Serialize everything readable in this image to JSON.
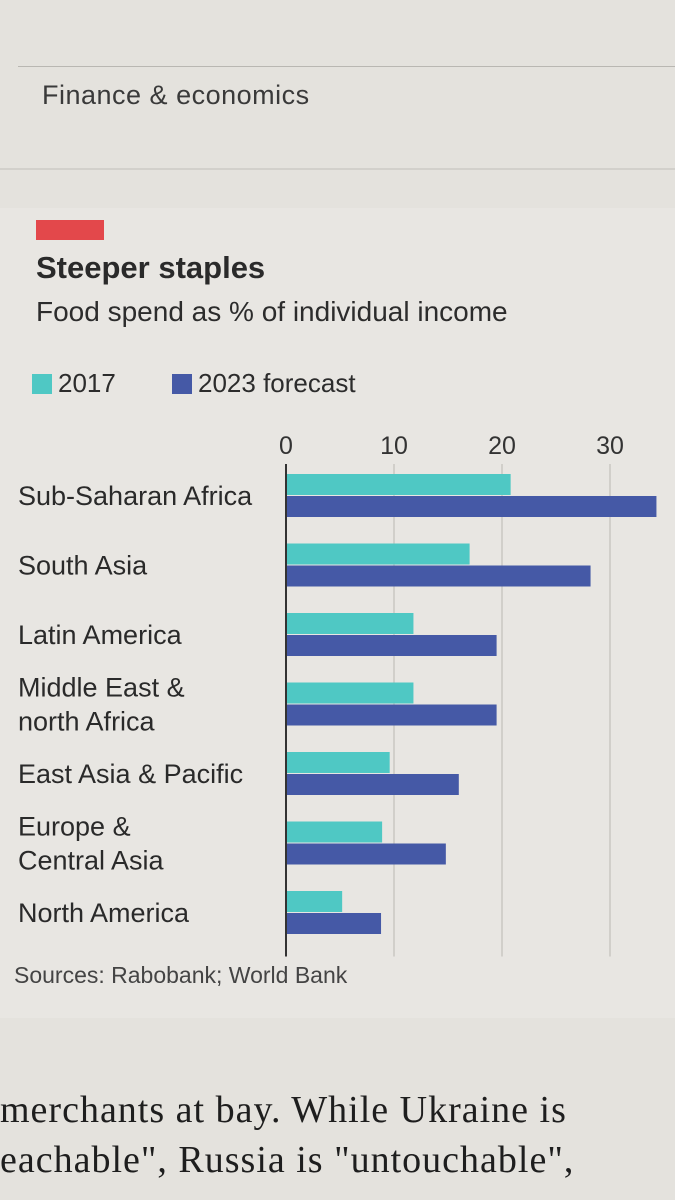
{
  "page": {
    "section": "Finance & economics",
    "source": "Sources: Rabobank; World Bank",
    "body_lines": [
      "merchants at bay. While Ukraine is",
      "eachable\", Russia is \"untouchable\","
    ]
  },
  "colors": {
    "series_2017": "#4fc8c4",
    "series_2023": "#4559a6",
    "accent": "#e3484b"
  },
  "chart_data": {
    "type": "bar",
    "orientation": "horizontal",
    "title": "Steeper staples",
    "subtitle": "Food spend as % of individual income",
    "categories": [
      "Sub-Saharan Africa",
      "South Asia",
      "Latin America",
      "Middle East & north Africa",
      "East Asia & Pacific",
      "Europe & Central Asia",
      "North America"
    ],
    "category_lines": [
      [
        "Sub-Saharan Africa"
      ],
      [
        "South Asia"
      ],
      [
        "Latin America"
      ],
      [
        "Middle East &",
        "north Africa"
      ],
      [
        "East Asia & Pacific"
      ],
      [
        "Europe &",
        "Central Asia"
      ],
      [
        "North America"
      ]
    ],
    "series": [
      {
        "name": "2017",
        "values": [
          20.8,
          17.0,
          11.8,
          11.8,
          9.6,
          8.9,
          5.2
        ]
      },
      {
        "name": "2023 forecast",
        "values": [
          34.3,
          28.2,
          19.5,
          19.5,
          16.0,
          14.8,
          8.8
        ]
      }
    ],
    "x_ticks": [
      0,
      10,
      20,
      30
    ],
    "xlim": [
      0,
      35
    ],
    "grid": true,
    "legend_position": "top-left"
  }
}
